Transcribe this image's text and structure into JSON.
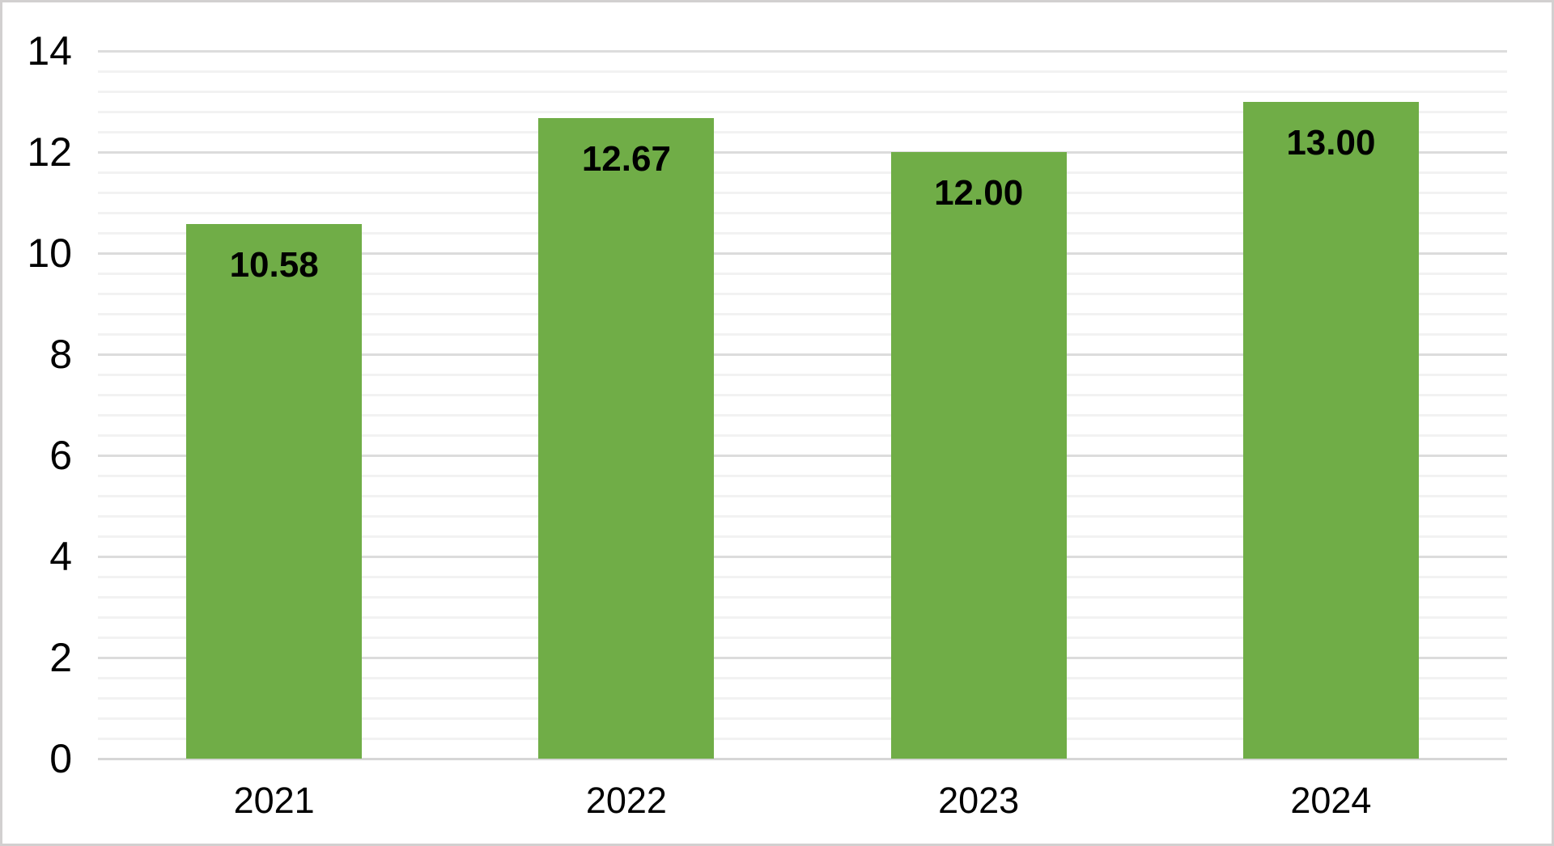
{
  "chart_data": {
    "type": "bar",
    "title": "",
    "xlabel": "",
    "ylabel": "",
    "categories": [
      "2021",
      "2022",
      "2023",
      "2024"
    ],
    "values": [
      10.58,
      12.67,
      12.0,
      13.0
    ],
    "value_labels": [
      "10.58",
      "12.67",
      "12.00",
      "13.00"
    ],
    "ylim": [
      0,
      14
    ],
    "y_major_tick": 2,
    "y_minor_tick": 0.4,
    "y_tick_labels": [
      "0",
      "2",
      "4",
      "6",
      "8",
      "10",
      "12",
      "14"
    ],
    "grid": "horizontal major and minor gridlines",
    "legend": "none",
    "data_label_position": "inside-end"
  },
  "colors": {
    "background": "#ffffff",
    "frame_border": "#d2d0d0",
    "bar_fill": "#70ad47",
    "major_gridline": "#dcdcdc",
    "minor_gridline": "#f2f2f2",
    "axis_line": "#d6d6d6",
    "text": "#000000"
  }
}
